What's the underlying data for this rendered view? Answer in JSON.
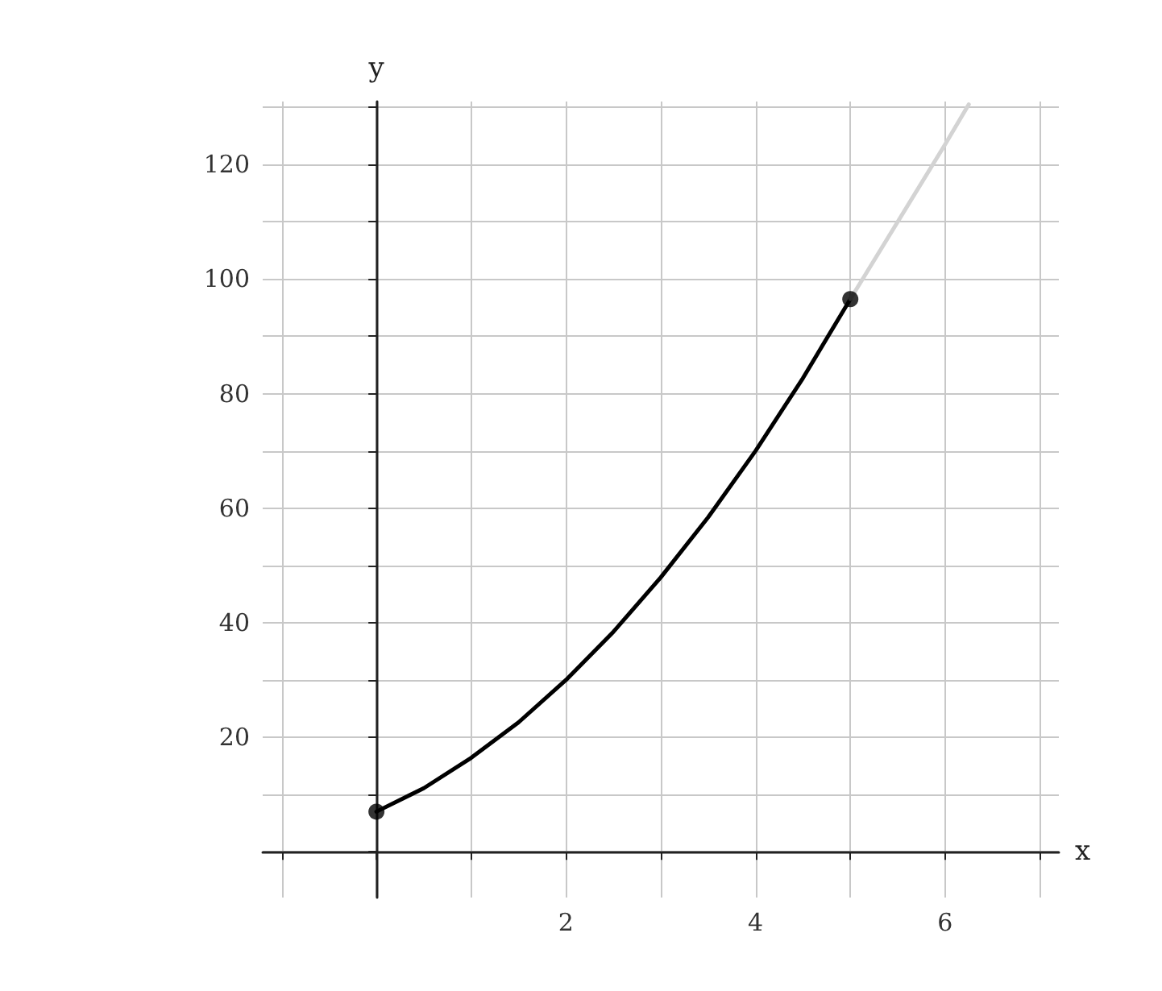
{
  "chart_data": {
    "type": "line",
    "xlabel": "x",
    "ylabel": "y",
    "xlim": [
      -1.2,
      7.2
    ],
    "ylim": [
      -8,
      131
    ],
    "xticks": [
      {
        "value": -1,
        "label": null
      },
      {
        "value": 0,
        "label": null
      },
      {
        "value": 1,
        "label": null
      },
      2,
      {
        "value": 3,
        "label": null
      },
      4,
      {
        "value": 5,
        "label": null
      },
      6,
      {
        "value": 7,
        "label": null
      }
    ],
    "yticks": [
      {
        "value": 0,
        "label": null
      },
      {
        "value": 10,
        "label": null
      },
      20,
      {
        "value": 30,
        "label": null
      },
      40,
      {
        "value": 50,
        "label": null
      },
      60,
      {
        "value": 70,
        "label": null
      },
      80,
      {
        "value": 90,
        "label": null
      },
      100,
      {
        "value": 110,
        "label": null
      },
      120,
      {
        "value": 130,
        "label": null
      }
    ],
    "grid": true,
    "line_style": "solid",
    "series": [
      {
        "color": "#000000",
        "marker": "none",
        "x": [
          0,
          0.5,
          1,
          1.5,
          2,
          2.5,
          3,
          3.5,
          4,
          4.5,
          5
        ],
        "values": [
          7,
          11.1,
          16.4,
          22.6,
          30,
          38.4,
          47.9,
          58.4,
          70,
          82.7,
          96.5
        ]
      },
      {
        "color": "#d3d3d3",
        "marker": "none",
        "x": [
          5,
          5.5,
          6,
          6.25
        ],
        "values": [
          96.5,
          110,
          123.5,
          130.5
        ]
      },
      {
        "type": "scatter",
        "color": "#000000",
        "marker": "circle",
        "x": [
          0,
          5
        ],
        "values": [
          7,
          96.5
        ]
      }
    ]
  }
}
